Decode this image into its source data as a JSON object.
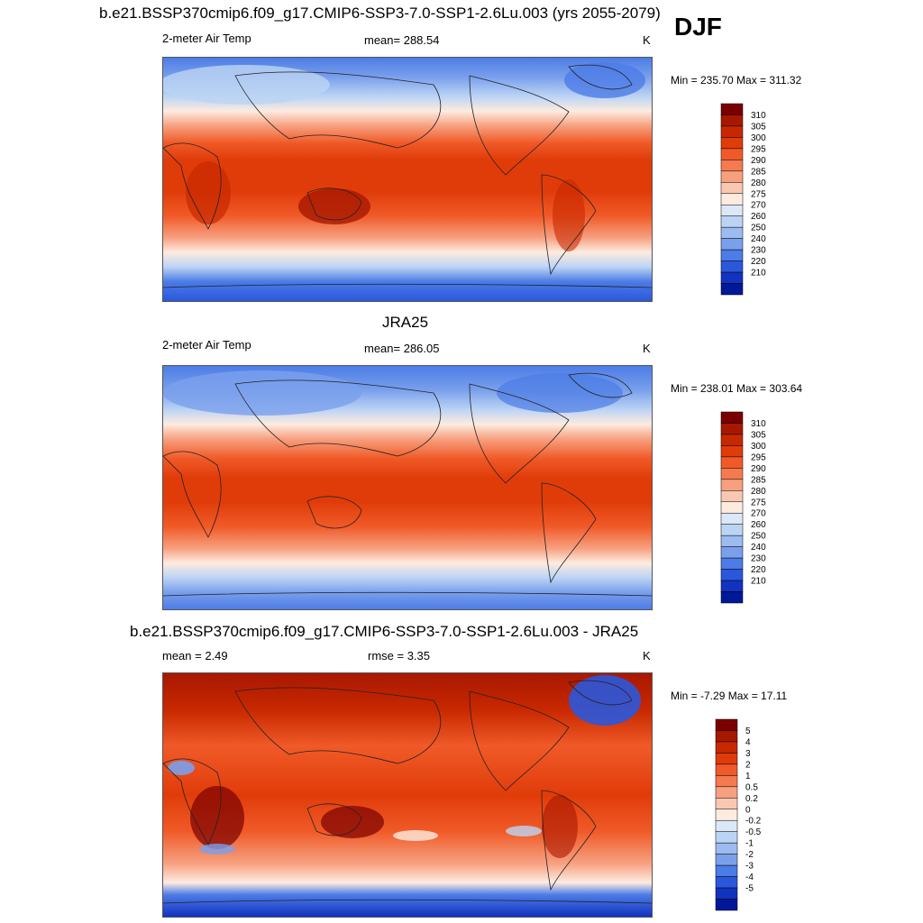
{
  "season": "DJF",
  "panels": [
    {
      "title": "b.e21.BSSP370cmip6.f09_g17.CMIP6-SSP3-7.0-SSP1-2.6Lu.003 (yrs 2055-2079)",
      "variable": "2-meter Air Temp",
      "stat": "mean= 288.54",
      "units": "K",
      "minmax": "Min = 235.70 Max = 311.32",
      "colorbar_labels": [
        "310",
        "305",
        "300",
        "295",
        "290",
        "285",
        "280",
        "275",
        "270",
        "260",
        "250",
        "240",
        "230",
        "220",
        "210"
      ],
      "colorbar_colors": [
        "#7a0000",
        "#a81800",
        "#c82800",
        "#e03c0a",
        "#f05a28",
        "#f57a50",
        "#f7a080",
        "#fac8b0",
        "#fdebe0",
        "#dbe8f8",
        "#bcd4f4",
        "#9cbcf0",
        "#7aa0ec",
        "#4c7ce6",
        "#2a58dc",
        "#1232c0",
        "#001898"
      ]
    },
    {
      "title": "JRA25",
      "variable": "2-meter Air Temp",
      "stat": "mean= 286.05",
      "units": "K",
      "minmax": "Min = 238.01 Max = 303.64",
      "colorbar_labels": [
        "310",
        "305",
        "300",
        "295",
        "290",
        "285",
        "280",
        "275",
        "270",
        "260",
        "250",
        "240",
        "230",
        "220",
        "210"
      ],
      "colorbar_colors": [
        "#7a0000",
        "#a81800",
        "#c82800",
        "#e03c0a",
        "#f05a28",
        "#f57a50",
        "#f7a080",
        "#fac8b0",
        "#fdebe0",
        "#dbe8f8",
        "#bcd4f4",
        "#9cbcf0",
        "#7aa0ec",
        "#4c7ce6",
        "#2a58dc",
        "#1232c0",
        "#001898"
      ]
    },
    {
      "title": "b.e21.BSSP370cmip6.f09_g17.CMIP6-SSP3-7.0-SSP1-2.6Lu.003 - JRA25",
      "stat_left": "mean =   2.49",
      "stat": "rmse =   3.35",
      "units": "K",
      "minmax": "Min =  -7.29 Max =  17.11",
      "colorbar_labels": [
        "5",
        "4",
        "3",
        "2",
        "1",
        "0.5",
        "0.2",
        "0",
        "-0.2",
        "-0.5",
        "-1",
        "-2",
        "-3",
        "-4",
        "-5"
      ],
      "colorbar_colors": [
        "#7a0000",
        "#a81800",
        "#c82800",
        "#e03c0a",
        "#f05a28",
        "#f57a50",
        "#f7a080",
        "#fac8b0",
        "#fdebe0",
        "#dbe8f8",
        "#bcd4f4",
        "#9cbcf0",
        "#7aa0ec",
        "#4c7ce6",
        "#2a58dc",
        "#1232c0",
        "#001898"
      ]
    }
  ]
}
